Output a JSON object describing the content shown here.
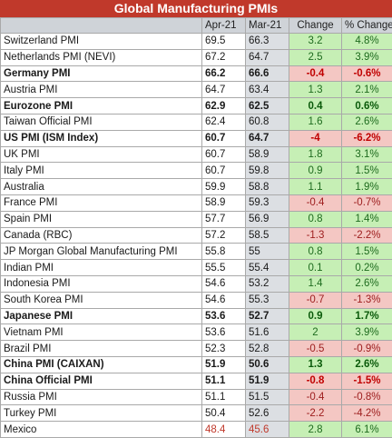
{
  "title": "Global Manufacturing PMIs",
  "headers": {
    "name": "",
    "apr": "Apr-21",
    "mar": "Mar-21",
    "change": "Change",
    "pct": "% Change"
  },
  "rows": [
    {
      "name": "Switzerland PMI",
      "apr": "69.5",
      "mar": "66.3",
      "change": "3.2",
      "pct": "4.8%",
      "dir": "pos",
      "bold": false
    },
    {
      "name": "Netherlands PMI (NEVI)",
      "apr": "67.2",
      "mar": "64.7",
      "change": "2.5",
      "pct": "3.9%",
      "dir": "pos",
      "bold": false
    },
    {
      "name": "Germany PMI",
      "apr": "66.2",
      "mar": "66.6",
      "change": "-0.4",
      "pct": "-0.6%",
      "dir": "neg",
      "bold": true
    },
    {
      "name": "Austria PMI",
      "apr": "64.7",
      "mar": "63.4",
      "change": "1.3",
      "pct": "2.1%",
      "dir": "pos",
      "bold": false
    },
    {
      "name": "Eurozone PMI",
      "apr": "62.9",
      "mar": "62.5",
      "change": "0.4",
      "pct": "0.6%",
      "dir": "pos",
      "bold": true
    },
    {
      "name": "Taiwan Official PMI",
      "apr": "62.4",
      "mar": "60.8",
      "change": "1.6",
      "pct": "2.6%",
      "dir": "pos",
      "bold": false
    },
    {
      "name": "US PMI (ISM Index)",
      "apr": "60.7",
      "mar": "64.7",
      "change": "-4",
      "pct": "-6.2%",
      "dir": "neg",
      "bold": true
    },
    {
      "name": "UK PMI",
      "apr": "60.7",
      "mar": "58.9",
      "change": "1.8",
      "pct": "3.1%",
      "dir": "pos",
      "bold": false
    },
    {
      "name": "Italy PMI",
      "apr": "60.7",
      "mar": "59.8",
      "change": "0.9",
      "pct": "1.5%",
      "dir": "pos",
      "bold": false
    },
    {
      "name": "Australia",
      "apr": "59.9",
      "mar": "58.8",
      "change": "1.1",
      "pct": "1.9%",
      "dir": "pos",
      "bold": false
    },
    {
      "name": "France PMI",
      "apr": "58.9",
      "mar": "59.3",
      "change": "-0.4",
      "pct": "-0.7%",
      "dir": "neg",
      "bold": false
    },
    {
      "name": "Spain PMI",
      "apr": "57.7",
      "mar": "56.9",
      "change": "0.8",
      "pct": "1.4%",
      "dir": "pos",
      "bold": false
    },
    {
      "name": "Canada (RBC)",
      "apr": "57.2",
      "mar": "58.5",
      "change": "-1.3",
      "pct": "-2.2%",
      "dir": "neg",
      "bold": false
    },
    {
      "name": "JP Morgan Global Manufacturing PMI",
      "apr": "55.8",
      "mar": "55",
      "change": "0.8",
      "pct": "1.5%",
      "dir": "pos",
      "bold": false
    },
    {
      "name": "Indian PMI",
      "apr": "55.5",
      "mar": "55.4",
      "change": "0.1",
      "pct": "0.2%",
      "dir": "pos",
      "bold": false
    },
    {
      "name": "Indonesia PMI",
      "apr": "54.6",
      "mar": "53.2",
      "change": "1.4",
      "pct": "2.6%",
      "dir": "pos",
      "bold": false
    },
    {
      "name": "South Korea PMI",
      "apr": "54.6",
      "mar": "55.3",
      "change": "-0.7",
      "pct": "-1.3%",
      "dir": "neg",
      "bold": false
    },
    {
      "name": "Japanese PMI",
      "apr": "53.6",
      "mar": "52.7",
      "change": "0.9",
      "pct": "1.7%",
      "dir": "pos",
      "bold": true
    },
    {
      "name": "Vietnam PMI",
      "apr": "53.6",
      "mar": "51.6",
      "change": "2",
      "pct": "3.9%",
      "dir": "pos",
      "bold": false
    },
    {
      "name": "Brazil PMI",
      "apr": "52.3",
      "mar": "52.8",
      "change": "-0.5",
      "pct": "-0.9%",
      "dir": "neg",
      "bold": false
    },
    {
      "name": "China PMI (CAIXAN)",
      "apr": "51.9",
      "mar": "50.6",
      "change": "1.3",
      "pct": "2.6%",
      "dir": "pos",
      "bold": true
    },
    {
      "name": "China Official PMI",
      "apr": "51.1",
      "mar": "51.9",
      "change": "-0.8",
      "pct": "-1.5%",
      "dir": "neg",
      "bold": true
    },
    {
      "name": "Russia PMI",
      "apr": "51.1",
      "mar": "51.5",
      "change": "-0.4",
      "pct": "-0.8%",
      "dir": "neg",
      "bold": false
    },
    {
      "name": "Turkey PMI",
      "apr": "50.4",
      "mar": "52.6",
      "change": "-2.2",
      "pct": "-4.2%",
      "dir": "neg",
      "bold": false
    },
    {
      "name": "Mexico",
      "apr": "48.4",
      "mar": "45.6",
      "change": "2.8",
      "pct": "6.1%",
      "dir": "pos",
      "bold": false,
      "below50": true
    }
  ],
  "colors": {
    "title_bg": "#c0392b",
    "header_bg": "#cfd3d8",
    "positive_bg": "#c6efb5",
    "negative_bg": "#f4c7c3"
  }
}
